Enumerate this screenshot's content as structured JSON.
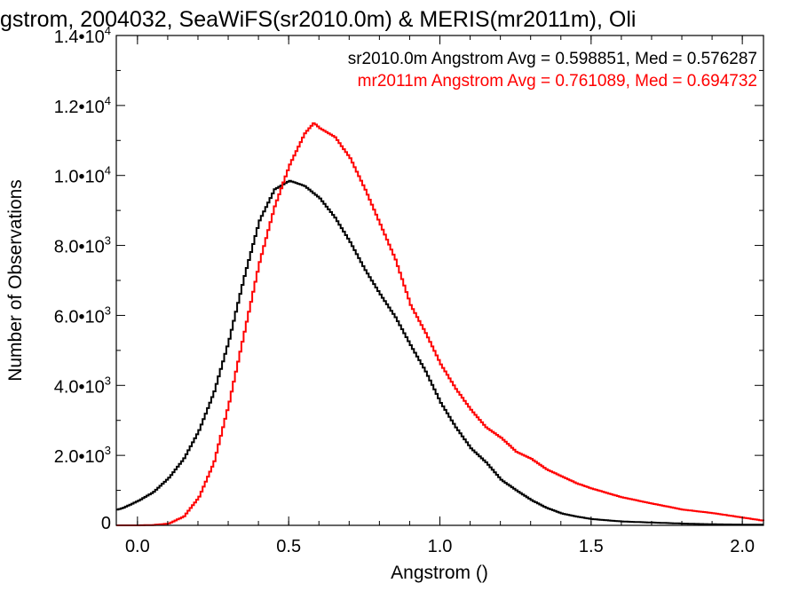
{
  "chart_data": {
    "type": "line",
    "title": "gstrom, 2004032, SeaWiFS(sr2010.0m) & MERIS(mr2011m), Oli",
    "xlabel": "Angstrom ()",
    "ylabel": "Number of Observations",
    "xlim": [
      -0.07,
      2.07
    ],
    "ylim": [
      0,
      14000
    ],
    "grid": false,
    "legend_placement": "top-right",
    "x_ticks": [
      {
        "value": 0.0,
        "label": "0.0"
      },
      {
        "value": 0.5,
        "label": "0.5"
      },
      {
        "value": 1.0,
        "label": "1.0"
      },
      {
        "value": 1.5,
        "label": "1.5"
      },
      {
        "value": 2.0,
        "label": "2.0"
      }
    ],
    "y_ticks": [
      {
        "value": 0,
        "mant": "0",
        "exp": ""
      },
      {
        "value": 2000,
        "mant": "2.0•10",
        "exp": "3"
      },
      {
        "value": 4000,
        "mant": "4.0•10",
        "exp": "3"
      },
      {
        "value": 6000,
        "mant": "6.0•10",
        "exp": "3"
      },
      {
        "value": 8000,
        "mant": "8.0•10",
        "exp": "3"
      },
      {
        "value": 10000,
        "mant": "1.0•10",
        "exp": "4"
      },
      {
        "value": 12000,
        "mant": "1.2•10",
        "exp": "4"
      },
      {
        "value": 14000,
        "mant": "1.4•10",
        "exp": "4"
      }
    ],
    "series": [
      {
        "name": "sr2010.0m",
        "legend": "sr2010.0m Angstrom Avg = 0.598851, Med = 0.576287",
        "color": "#000000",
        "x": [
          -0.07,
          -0.05,
          0.0,
          0.05,
          0.1,
          0.15,
          0.2,
          0.25,
          0.3,
          0.35,
          0.4,
          0.45,
          0.5,
          0.55,
          0.6,
          0.65,
          0.7,
          0.75,
          0.8,
          0.85,
          0.9,
          0.95,
          1.0,
          1.05,
          1.1,
          1.15,
          1.2,
          1.25,
          1.3,
          1.35,
          1.4,
          1.45,
          1.5,
          1.6,
          1.7,
          1.8,
          1.9,
          2.0,
          2.07
        ],
        "y": [
          450,
          500,
          700,
          950,
          1350,
          1900,
          2700,
          3800,
          5300,
          7100,
          8700,
          9600,
          9850,
          9700,
          9350,
          8800,
          8100,
          7300,
          6600,
          5950,
          5150,
          4400,
          3500,
          2800,
          2200,
          1800,
          1300,
          1000,
          720,
          500,
          340,
          250,
          180,
          110,
          80,
          50,
          30,
          20,
          20
        ]
      },
      {
        "name": "mr2011m",
        "legend": "mr2011m Angstrom Avg = 0.761089, Med = 0.694732",
        "color": "#ff0000",
        "x": [
          -0.07,
          0.0,
          0.05,
          0.1,
          0.15,
          0.2,
          0.25,
          0.3,
          0.35,
          0.4,
          0.45,
          0.5,
          0.55,
          0.58,
          0.6,
          0.65,
          0.7,
          0.75,
          0.8,
          0.85,
          0.9,
          0.95,
          1.0,
          1.05,
          1.1,
          1.15,
          1.2,
          1.25,
          1.3,
          1.35,
          1.4,
          1.45,
          1.5,
          1.6,
          1.7,
          1.8,
          1.9,
          2.0,
          2.07
        ],
        "y": [
          0,
          0,
          10,
          50,
          250,
          800,
          1800,
          3500,
          5500,
          7500,
          9100,
          10300,
          11200,
          11500,
          11350,
          11100,
          10500,
          9600,
          8600,
          7600,
          6300,
          5500,
          4600,
          3900,
          3300,
          2800,
          2500,
          2100,
          1900,
          1600,
          1400,
          1200,
          1050,
          800,
          620,
          450,
          350,
          220,
          130
        ]
      }
    ]
  }
}
